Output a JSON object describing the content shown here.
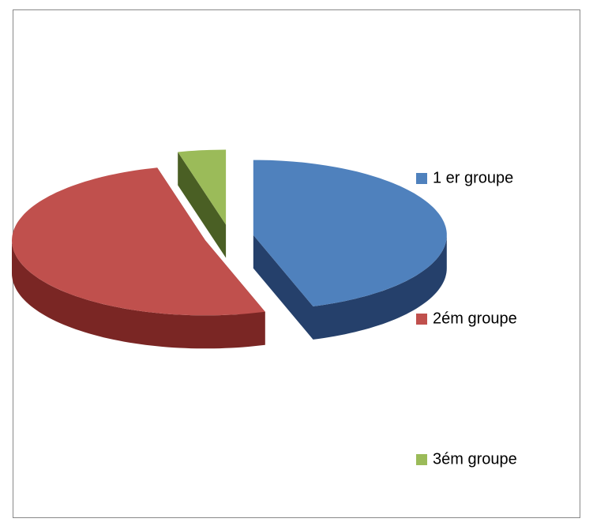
{
  "chart_data": {
    "type": "pie",
    "categories": [
      "1 er groupe",
      "2ém groupe",
      "3ém groupe"
    ],
    "values": [
      45,
      51,
      4
    ],
    "colors": [
      "#4f81bd",
      "#c0504d",
      "#9bbb59"
    ],
    "side_colors": [
      "#25406b",
      "#7a2624",
      "#4a5f24"
    ],
    "legend_position": "right",
    "exploded": true,
    "three_d": true
  }
}
